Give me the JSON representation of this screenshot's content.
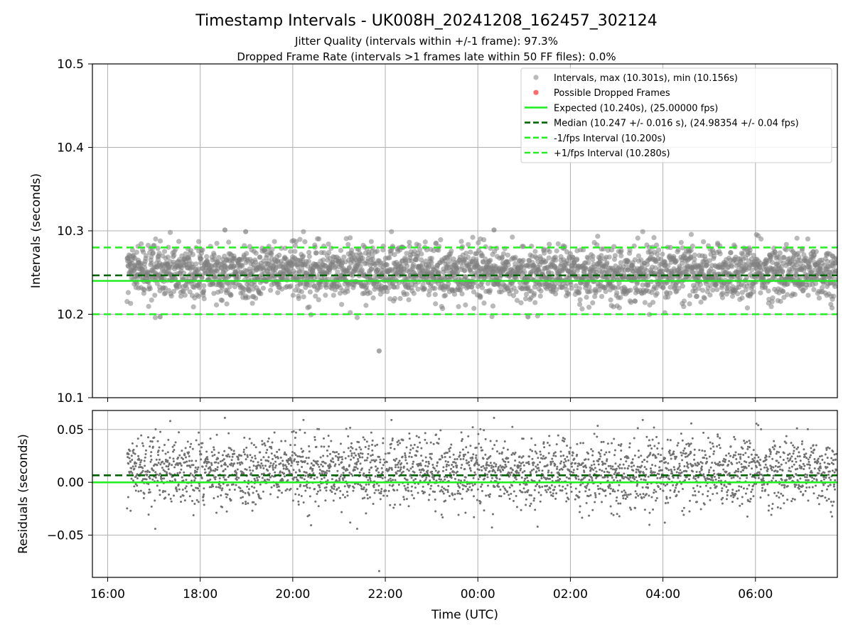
{
  "title": "Timestamp Intervals - UK008H_20241208_162457_302124",
  "subtitle_1": "Jitter Quality (intervals within +/-1 frame): 97.3%",
  "subtitle_2": "Dropped Frame Rate (intervals >1 frames late within 50 FF files): 0.0%",
  "chart_data": [
    {
      "type": "scatter",
      "panel": "intervals",
      "ylabel": "Intervals (seconds)",
      "ylim": [
        10.1,
        10.5
      ],
      "yticks": [
        10.1,
        10.2,
        10.3,
        10.4,
        10.5
      ],
      "ytick_labels": [
        "10.1",
        "10.2",
        "10.3",
        "10.4",
        "10.5"
      ],
      "xlim_hours": [
        15.67,
        31.77
      ],
      "grid": true,
      "legend_position": "top-right",
      "series": [
        {
          "name": "Intervals, max (10.301s), min (10.156s)",
          "kind": "scatter",
          "color": "#808080",
          "x_start": "16:25",
          "x_end": "07:45",
          "center": 10.25,
          "spread_sd": 0.016,
          "points": [
            {
              "x": "18:32",
              "y": 10.301
            },
            {
              "x": "18:59",
              "y": 10.299
            },
            {
              "x": "00:21",
              "y": 10.301
            },
            {
              "x": "21:52",
              "y": 10.156
            },
            {
              "x": "17:08",
              "y": 10.197
            },
            {
              "x": "01:05",
              "y": 10.197
            }
          ]
        },
        {
          "name": "Possible Dropped Frames",
          "kind": "scatter",
          "color": "#ff5050",
          "points": []
        },
        {
          "name": "Expected (10.240s), (25.00000 fps)",
          "kind": "hline",
          "y": 10.24,
          "color": "#22ee22",
          "style": "solid"
        },
        {
          "name": "Median (10.247 +/- 0.016 s), (24.98354 +/- 0.04 fps)",
          "kind": "hline",
          "y": 10.2466,
          "color": "#006400",
          "style": "dashed"
        },
        {
          "name": "-1/fps Interval (10.200s)",
          "kind": "hline",
          "y": 10.2,
          "color": "#22ee22",
          "style": "dashed"
        },
        {
          "name": "+1/fps Interval (10.280s)",
          "kind": "hline",
          "y": 10.28,
          "color": "#22ee22",
          "style": "dashed"
        }
      ]
    },
    {
      "type": "scatter",
      "panel": "residuals",
      "ylabel": "Residuals (seconds)",
      "xlabel": "Time (UTC)",
      "ylim": [
        -0.09,
        0.068
      ],
      "yticks": [
        -0.05,
        0.0,
        0.05
      ],
      "ytick_labels": [
        "−0.05",
        "0.00",
        "0.05"
      ],
      "xticks": [
        "16:00",
        "18:00",
        "20:00",
        "22:00",
        "00:00",
        "02:00",
        "04:00",
        "06:00"
      ],
      "xtick_hours": [
        16,
        18,
        20,
        22,
        24,
        26,
        28,
        30
      ],
      "grid": true,
      "series": [
        {
          "kind": "scatter",
          "color": "#707070",
          "center": 0.0066,
          "spread_sd": 0.016,
          "points": [
            {
              "x": "21:52",
              "y": -0.084
            },
            {
              "x": "18:32",
              "y": 0.061
            },
            {
              "x": "00:21",
              "y": 0.061
            }
          ]
        },
        {
          "kind": "hline",
          "y": 0.0,
          "color": "#22ee22",
          "style": "solid"
        },
        {
          "kind": "hline",
          "y": 0.0066,
          "color": "#006400",
          "style": "dashed"
        }
      ]
    }
  ]
}
